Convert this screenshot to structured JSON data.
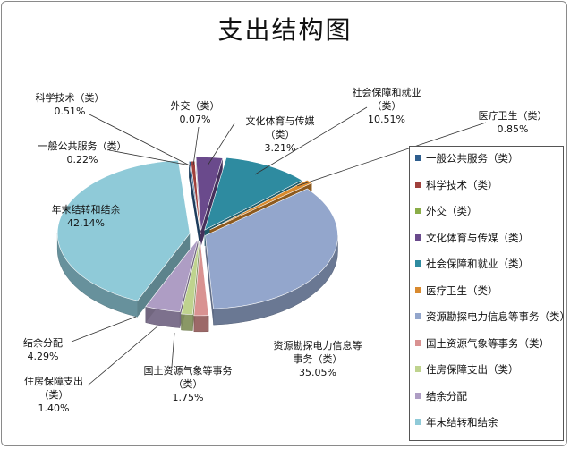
{
  "chart_data": {
    "type": "pie",
    "title": "支出结构图",
    "three_d": true,
    "exploded": true,
    "legend_position": "right",
    "slices": [
      {
        "label": "一般公共服务（类）",
        "label_lines": [
          "一般公共服务（类）"
        ],
        "value_text": "0.22%",
        "value": 0.22,
        "color": "#2E5E8E"
      },
      {
        "label": "科学技术（类）",
        "label_lines": [
          "科学技术（类）"
        ],
        "value_text": "0.51%",
        "value": 0.51,
        "color": "#A0403C"
      },
      {
        "label": "外交（类）",
        "label_lines": [
          "外交（类）"
        ],
        "value_text": "0.07%",
        "value": 0.07,
        "color": "#8AAD47"
      },
      {
        "label": "文化体育与传媒（类）",
        "label_lines": [
          "文化体育与传媒",
          "（类）"
        ],
        "value_text": "3.21%",
        "value": 3.21,
        "color": "#6A4A8C"
      },
      {
        "label": "社会保障和就业（类）",
        "label_lines": [
          "社会保障和就业",
          "（类）"
        ],
        "value_text": "10.51%",
        "value": 10.51,
        "color": "#2E8BA0"
      },
      {
        "label": "医疗卫生（类）",
        "label_lines": [
          "医疗卫生（类）"
        ],
        "value_text": "0.85%",
        "value": 0.85,
        "color": "#D98A2E"
      },
      {
        "label": "资源勘探电力信息等事务（类）",
        "label_lines": [
          "资源勘探电力信息等",
          "事务（类）"
        ],
        "value_text": "35.05%",
        "value": 35.05,
        "color": "#93A6CC"
      },
      {
        "label": "国土资源气象等事务（类）",
        "label_lines": [
          "国土资源气象等事务",
          "（类）"
        ],
        "value_text": "1.75%",
        "value": 1.75,
        "color": "#D99291"
      },
      {
        "label": "住房保障支出（类）",
        "label_lines": [
          "住房保障支出",
          "（类）"
        ],
        "value_text": "1.40%",
        "value": 1.4,
        "color": "#BFD38E"
      },
      {
        "label": "结余分配",
        "label_lines": [
          "结余分配"
        ],
        "value_text": "4.29%",
        "value": 4.29,
        "color": "#AE9DC4"
      },
      {
        "label": "年末结转和结余",
        "label_lines": [
          "年末结转和结余"
        ],
        "value_text": "42.14%",
        "value": 42.14,
        "color": "#8FCAD8"
      }
    ],
    "legend": [
      "一般公共服务（类）",
      "科学技术（类）",
      "外交（类）",
      "文化体育与传媒（类）",
      "社会保障和就业（类）",
      "医疗卫生（类）",
      "资源勘探电力信息等事务（类）",
      "国土资源气象等事务（类）",
      "住房保障支出（类）",
      "结余分配",
      "年末结转和结余"
    ]
  }
}
